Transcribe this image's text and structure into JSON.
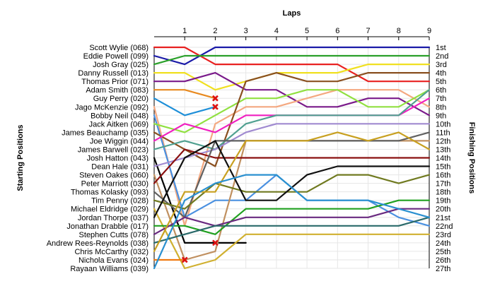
{
  "chart_data": {
    "type": "line",
    "title": "",
    "top_axis_label": "Laps",
    "left_axis_label": "Starting Positions",
    "right_axis_label": "Finishing Positions",
    "x": [
      0,
      1,
      2,
      3,
      4,
      5,
      6,
      7,
      8,
      9
    ],
    "x_ticks": [
      1,
      2,
      3,
      4,
      5,
      6,
      7,
      8,
      9
    ],
    "y_range": [
      1,
      27
    ],
    "y_inverted": true,
    "grid": true,
    "colors": {
      "background": "#ffffff",
      "grid": "#e6e6e6",
      "axis": "#000000",
      "retired_marker": "#dd1111"
    },
    "starting_labels": [
      "Scott Wylie (068)",
      "Eddie Powell (099)",
      "Josh Gray (025)",
      "Danny Russell (013)",
      "Thomas Prior (071)",
      "Adam Smith (083)",
      "Guy Perry (020)",
      "Jago McKenzie (092)",
      "Bobby Neil (048)",
      "Jack Aitken (069)",
      "James Beauchamp (035)",
      "Joe Wiggin (044)",
      "James Barwell (023)",
      "Josh Hatton (043)",
      "Dean Hale (031)",
      "Steven Oakes (060)",
      "Peter Marriott (030)",
      "Thomas Kolasky (093)",
      "Tim Penny (028)",
      "Michael Eldridge (029)",
      "Jordan Thorpe (037)",
      "Jonathan Drabble (017)",
      "Stephen Cutts (078)",
      "Andrew Rees-Reynolds (038)",
      "Chris McCarthy (032)",
      "Nichola Evans (024)",
      "Rayaan Williams (039)"
    ],
    "finishing_labels": [
      "1st",
      "2nd",
      "3rd",
      "4th",
      "5th",
      "6th",
      "7th",
      "8th",
      "9th",
      "10th",
      "11th",
      "12th",
      "13th",
      "14th",
      "15th",
      "16th",
      "17th",
      "18th",
      "19th",
      "20th",
      "21st",
      "22nd",
      "23rd",
      "24th",
      "25th",
      "26th",
      "27th"
    ],
    "series": [
      {
        "name": "Scott Wylie (068)",
        "color": "#e82020",
        "values": [
          1,
          1,
          3,
          3,
          3,
          3,
          3,
          5,
          5,
          5
        ]
      },
      {
        "name": "Eddie Powell (099)",
        "color": "#1a1aa8",
        "values": [
          2,
          3,
          1,
          1,
          1,
          1,
          1,
          1,
          1,
          1
        ]
      },
      {
        "name": "Josh Gray (025)",
        "color": "#2aa02a",
        "values": [
          3,
          2,
          2,
          2,
          2,
          2,
          2,
          2,
          2,
          2
        ]
      },
      {
        "name": "Danny Russell (013)",
        "color": "#f0e020",
        "values": [
          4,
          4,
          6,
          5,
          4,
          4,
          4,
          3,
          3,
          3
        ]
      },
      {
        "name": "Thomas Prior (071)",
        "color": "#7a1a8a",
        "values": [
          5,
          5,
          4,
          6,
          6,
          8,
          8,
          7,
          7,
          9
        ]
      },
      {
        "name": "Adam Smith (083)",
        "color": "#e88a20",
        "values": [
          6,
          6,
          7,
          null,
          null,
          null,
          null,
          null,
          null,
          null
        ],
        "retired_after": 2
      },
      {
        "name": "Guy Perry (020)",
        "color": "#1e8fd8",
        "values": [
          7,
          9,
          8,
          null,
          null,
          null,
          null,
          null,
          null,
          null
        ],
        "retired_after": 2
      },
      {
        "name": "Jago McKenzie (092)",
        "color": "#f4a880",
        "values": [
          8,
          22,
          10,
          8,
          8,
          7,
          6,
          6,
          6,
          8
        ]
      },
      {
        "name": "Bobby Neil (048)",
        "color": "#4a90e0",
        "values": [
          9,
          21,
          19,
          19,
          16,
          19,
          19,
          19,
          21,
          22
        ]
      },
      {
        "name": "Jack Aitken (069)",
        "color": "#90e040",
        "values": [
          10,
          11,
          9,
          7,
          7,
          6,
          6,
          8,
          8,
          6
        ]
      },
      {
        "name": "James Beauchamp (035)",
        "color": "#8a5020",
        "values": [
          11,
          13,
          15,
          5,
          4,
          5,
          5,
          4,
          4,
          4
        ]
      },
      {
        "name": "Joe Wiggin (044)",
        "color": "#f020c0",
        "values": [
          12,
          10,
          11,
          9,
          9,
          9,
          9,
          9,
          9,
          7
        ]
      },
      {
        "name": "James Barwell (023)",
        "color": "#50a090",
        "values": [
          13,
          12,
          13,
          10,
          9,
          9,
          9,
          9,
          9,
          6
        ]
      },
      {
        "name": "Josh Hatton (043)",
        "color": "#000000",
        "values": [
          14,
          24,
          24,
          24,
          null,
          null,
          null,
          null,
          null,
          null
        ],
        "retired_after": 2
      },
      {
        "name": "Dean Hale (031)",
        "color": "#a08ad0",
        "values": [
          15,
          14,
          13,
          11,
          10,
          10,
          10,
          10,
          10,
          10
        ]
      },
      {
        "name": "Steven Oakes (060)",
        "color": "#c09060",
        "values": [
          16,
          26,
          25,
          12,
          12,
          12,
          12,
          12,
          12,
          12
        ]
      },
      {
        "name": "Peter Marriott (030)",
        "color": "#8a1010",
        "values": [
          17,
          13,
          14,
          14,
          14,
          14,
          14,
          14,
          14,
          14
        ]
      },
      {
        "name": "Thomas Kolasky (093)",
        "color": "#606060",
        "values": [
          18,
          21,
          12,
          12,
          12,
          12,
          12,
          12,
          12,
          11
        ]
      },
      {
        "name": "Tim Penny (028)",
        "color": "#707a20",
        "values": [
          19,
          20,
          17,
          18,
          18,
          18,
          16,
          16,
          17,
          16
        ]
      },
      {
        "name": "Michael Eldridge (029)",
        "color": "#d0b030",
        "values": [
          20,
          27,
          26,
          23,
          23,
          23,
          23,
          23,
          23,
          23
        ]
      },
      {
        "name": "Jordan Thorpe (037)",
        "color": "#101010",
        "values": [
          21,
          14,
          12,
          19,
          19,
          16,
          15,
          15,
          15,
          15
        ]
      },
      {
        "name": "Jonathan Drabble (017)",
        "color": "#20a020",
        "values": [
          22,
          22,
          23,
          20,
          20,
          20,
          20,
          20,
          19,
          19
        ]
      },
      {
        "name": "Stephen Cutts (078)",
        "color": "#6a2a80",
        "values": [
          23,
          21,
          22,
          21,
          21,
          21,
          21,
          21,
          20,
          20
        ]
      },
      {
        "name": "Andrew Rees-Reynolds (038)",
        "color": "#2a6a6a",
        "values": [
          24,
          23,
          22,
          22,
          22,
          22,
          22,
          22,
          22,
          21
        ]
      },
      {
        "name": "Chris McCarthy (032)",
        "color": "#c8a020",
        "values": [
          25,
          18,
          18,
          12,
          12,
          12,
          11,
          12,
          11,
          13
        ]
      },
      {
        "name": "Nichola Evans (024)",
        "color": "#f07a10",
        "values": [
          26,
          26,
          null,
          null,
          null,
          null,
          null,
          null,
          null,
          null
        ],
        "retired_after": 1
      },
      {
        "name": "Rayaan Williams (039)",
        "color": "#2a90d0",
        "values": [
          27,
          19,
          17,
          16,
          16,
          19,
          19,
          19,
          20,
          21
        ]
      }
    ]
  }
}
